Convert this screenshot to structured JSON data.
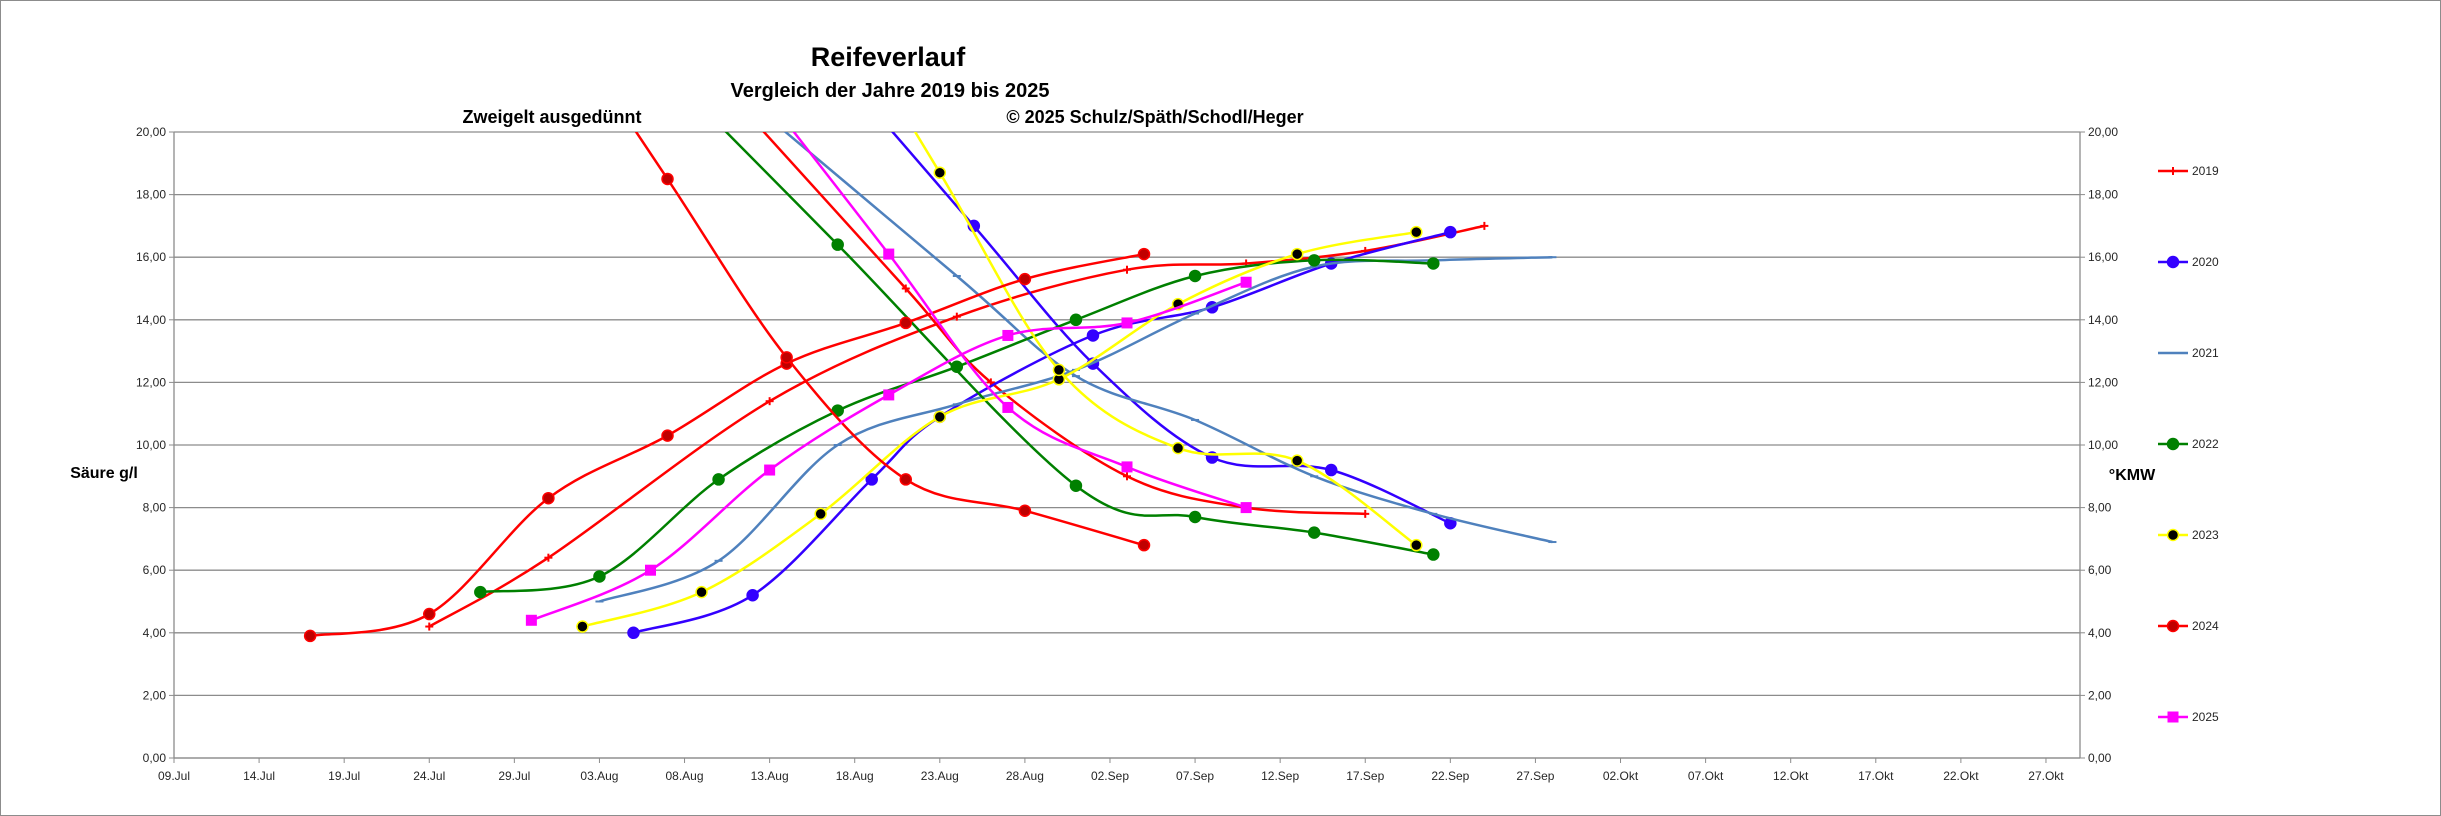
{
  "chart_data": {
    "type": "line",
    "title": "Reifeverlauf",
    "subtitle": "Vergleich der Jahre 2019 bis  2025",
    "annotations": [
      "Zweigelt ausgedünnt",
      "© 2025 Schulz/Späth/Schodl/Heger"
    ],
    "ylabel_left": "Säure g/l",
    "ylabel_right": "°KMW",
    "ylim": [
      0,
      20
    ],
    "y_ticks": [
      "0,00",
      "2,00",
      "4,00",
      "6,00",
      "8,00",
      "10,00",
      "12,00",
      "14,00",
      "16,00",
      "18,00",
      "20,00"
    ],
    "x_ticks": [
      "09.Jul",
      "14.Jul",
      "19.Jul",
      "24.Jul",
      "29.Jul",
      "03.Aug",
      "08.Aug",
      "13.Aug",
      "18.Aug",
      "23.Aug",
      "28.Aug",
      "02.Sep",
      "07.Sep",
      "12.Sep",
      "17.Sep",
      "22.Sep",
      "27.Sep",
      "02.Okt",
      "07.Okt",
      "12.Okt",
      "17.Okt",
      "22.Okt",
      "27.Okt"
    ],
    "x_unit": "days since 09.Jul",
    "xlim": [
      0,
      112
    ],
    "grid": true,
    "legend_position": "right",
    "series": [
      {
        "name": "2019",
        "color": "#ff0000",
        "marker": "plus",
        "kmw": [
          [
            15,
            4.2
          ],
          [
            22,
            6.4
          ],
          [
            35,
            11.4
          ],
          [
            46,
            14.1
          ],
          [
            56,
            15.6
          ],
          [
            63,
            15.8
          ],
          [
            70,
            16.2
          ],
          [
            77,
            17.0
          ]
        ],
        "acid": [
          [
            43,
            15.0
          ],
          [
            48,
            12.0
          ],
          [
            56,
            9.0
          ],
          [
            63,
            8.0
          ],
          [
            70,
            7.8
          ]
        ]
      },
      {
        "name": "2020",
        "color": "#3300ff",
        "marker": "dot",
        "kmw": [
          [
            27,
            4.0
          ],
          [
            34,
            5.2
          ],
          [
            41,
            8.9
          ],
          [
            45,
            10.9
          ],
          [
            54,
            13.5
          ],
          [
            61,
            14.4
          ],
          [
            68,
            15.8
          ],
          [
            75,
            16.8
          ]
        ],
        "acid": [
          [
            47,
            17.0
          ],
          [
            54,
            12.6
          ],
          [
            61,
            9.6
          ],
          [
            68,
            9.2
          ],
          [
            75,
            7.5
          ]
        ]
      },
      {
        "name": "2021",
        "color": "#4f81bd",
        "marker": "tick",
        "kmw": [
          [
            25,
            5.0
          ],
          [
            32,
            6.3
          ],
          [
            39,
            10.0
          ],
          [
            46,
            11.3
          ],
          [
            53,
            12.4
          ],
          [
            60,
            14.2
          ],
          [
            67,
            15.7
          ],
          [
            74,
            15.9
          ],
          [
            81,
            16.0
          ]
        ],
        "acid": [
          [
            46,
            15.4
          ],
          [
            53,
            12.2
          ],
          [
            60,
            10.8
          ],
          [
            67,
            9.0
          ],
          [
            74,
            7.8
          ],
          [
            81,
            6.9
          ]
        ]
      },
      {
        "name": "2022",
        "color": "#008000",
        "marker": "dot",
        "kmw": [
          [
            18,
            5.3
          ],
          [
            25,
            5.8
          ],
          [
            32,
            8.9
          ],
          [
            39,
            11.1
          ],
          [
            46,
            12.5
          ],
          [
            53,
            14.0
          ],
          [
            60,
            15.4
          ],
          [
            67,
            15.9
          ],
          [
            74,
            15.8
          ]
        ],
        "acid": [
          [
            39,
            16.4
          ],
          [
            53,
            8.7
          ],
          [
            60,
            7.7
          ],
          [
            67,
            7.2
          ],
          [
            74,
            6.5
          ]
        ]
      },
      {
        "name": "2023",
        "color": "#ffff00",
        "marker": "dot",
        "marker_color": "#000000",
        "kmw": [
          [
            24,
            4.2
          ],
          [
            31,
            5.3
          ],
          [
            38,
            7.8
          ],
          [
            45,
            10.9
          ],
          [
            52,
            12.1
          ],
          [
            59,
            14.5
          ],
          [
            66,
            16.1
          ],
          [
            73,
            16.8
          ]
        ],
        "acid": [
          [
            45,
            18.7
          ],
          [
            52,
            12.4
          ],
          [
            59,
            9.9
          ],
          [
            66,
            9.5
          ],
          [
            73,
            6.8
          ]
        ]
      },
      {
        "name": "2024",
        "color": "#ff0000",
        "marker": "dot",
        "marker_color": "#c00000",
        "kmw": [
          [
            8,
            3.9
          ],
          [
            15,
            4.6
          ],
          [
            22,
            8.3
          ],
          [
            29,
            10.3
          ],
          [
            36,
            12.6
          ],
          [
            43,
            13.9
          ],
          [
            50,
            15.3
          ],
          [
            57,
            16.1
          ]
        ],
        "acid": [
          [
            29,
            18.5
          ],
          [
            36,
            12.8
          ],
          [
            43,
            8.9
          ],
          [
            50,
            7.9
          ],
          [
            57,
            6.8
          ]
        ]
      },
      {
        "name": "2025",
        "color": "#ff00ff",
        "marker": "square",
        "kmw": [
          [
            21,
            4.4
          ],
          [
            28,
            6.0
          ],
          [
            35,
            9.2
          ],
          [
            42,
            11.6
          ],
          [
            49,
            13.5
          ],
          [
            56,
            13.9
          ],
          [
            63,
            15.2
          ]
        ],
        "acid": [
          [
            42,
            16.1
          ],
          [
            49,
            11.2
          ],
          [
            56,
            9.3
          ],
          [
            63,
            8.0
          ]
        ]
      }
    ]
  }
}
